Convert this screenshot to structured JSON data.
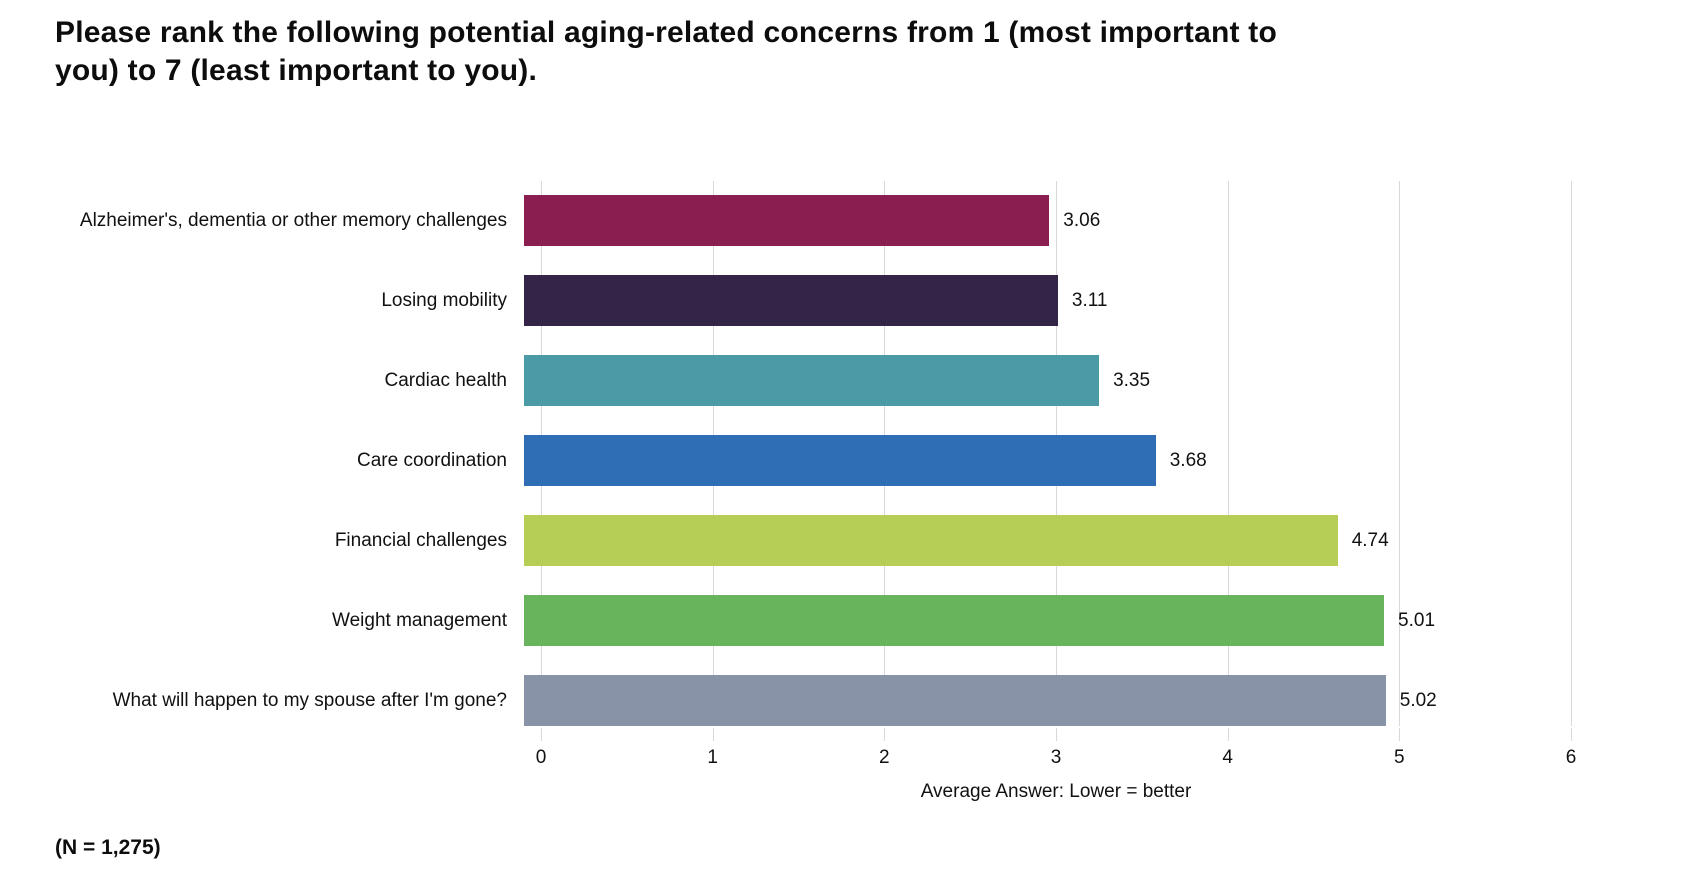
{
  "title": "Please rank the following potential aging-related concerns from 1 (most important to you) to 7 (least important to you).",
  "footnote": "(N = 1,275)",
  "chart_data": {
    "type": "bar",
    "orientation": "horizontal",
    "title": "Please rank the following potential aging-related concerns from 1 (most important to you) to 7 (least important to you).",
    "categories": [
      "Alzheimer's, dementia or other memory challenges",
      "Losing mobility",
      "Cardiac health",
      "Care coordination",
      "Financial challenges",
      "Weight management",
      "What will happen to my spouse after I'm gone?"
    ],
    "values": [
      3.06,
      3.11,
      3.35,
      3.68,
      4.74,
      5.01,
      5.02
    ],
    "value_labels": [
      "3.06",
      "3.11",
      "3.35",
      "3.68",
      "4.74",
      "5.01",
      "5.02"
    ],
    "bar_colors": [
      "#8B1E51",
      "#342448",
      "#4A9BA6",
      "#2F6EB5",
      "#B6CE55",
      "#68B45C",
      "#8993A7"
    ],
    "xlabel": "Average Answer: Lower = better",
    "xlim": [
      0,
      6
    ],
    "x_ticks": [
      "0",
      "1",
      "2",
      "3",
      "4",
      "5",
      "6"
    ],
    "grid": true,
    "gridline_color": "#D9D9D9",
    "legend": "none",
    "background": "#FFFFFF"
  }
}
